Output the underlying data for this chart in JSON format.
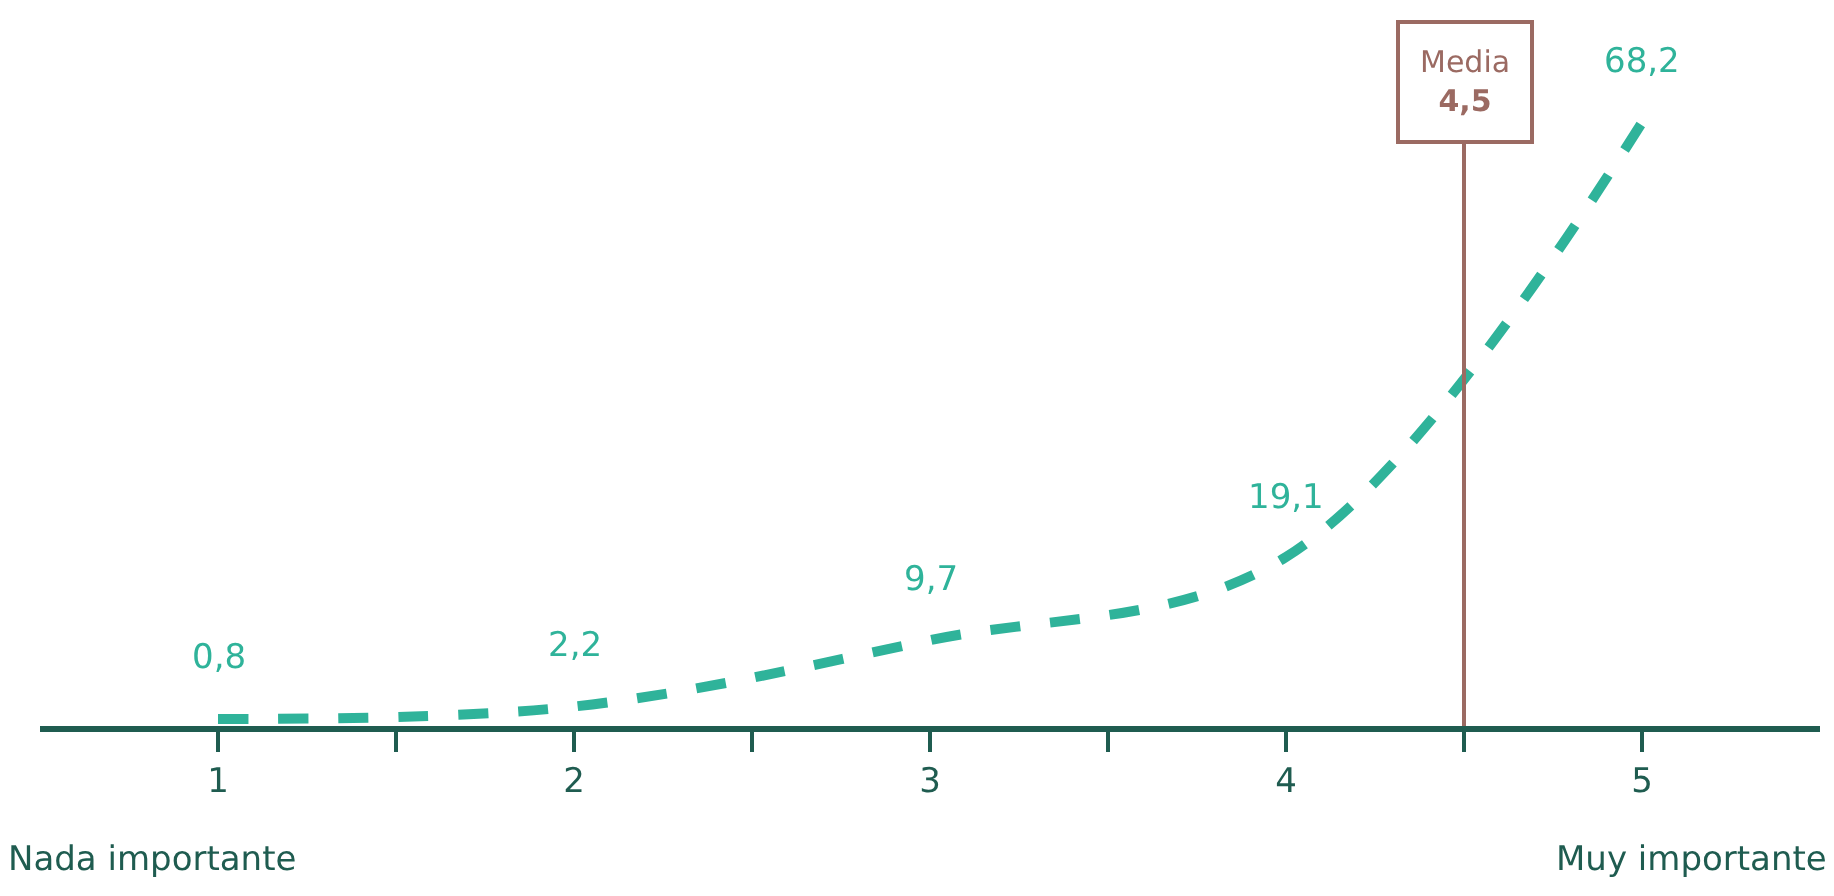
{
  "chart_data": {
    "type": "line",
    "x": [
      1,
      2,
      3,
      4,
      5
    ],
    "series": [
      {
        "color": "#2fb39a",
        "values": [
          0.8,
          2.2,
          9.7,
          19.1,
          68.2
        ],
        "value_labels": [
          "0,8",
          "2,2",
          "9,7",
          "19,1",
          "68,2"
        ]
      }
    ],
    "xlim": [
      0.5,
      5.5
    ],
    "xticks": [
      1,
      {
        "value": 1.5,
        "label": null
      },
      2,
      {
        "value": 2.5,
        "label": null
      },
      3,
      {
        "value": 3.5,
        "label": null
      },
      4,
      {
        "value": 4.5,
        "label": null
      },
      5
    ],
    "tick_labels": "x",
    "marker": "none",
    "line_style": "dashed",
    "ref_lines": [
      {
        "axis": "x",
        "value": 4.5,
        "label": "Media\n4,5",
        "color": "#9b6a62"
      }
    ],
    "annotations": [
      "Nada importante",
      "Muy importante"
    ]
  }
}
